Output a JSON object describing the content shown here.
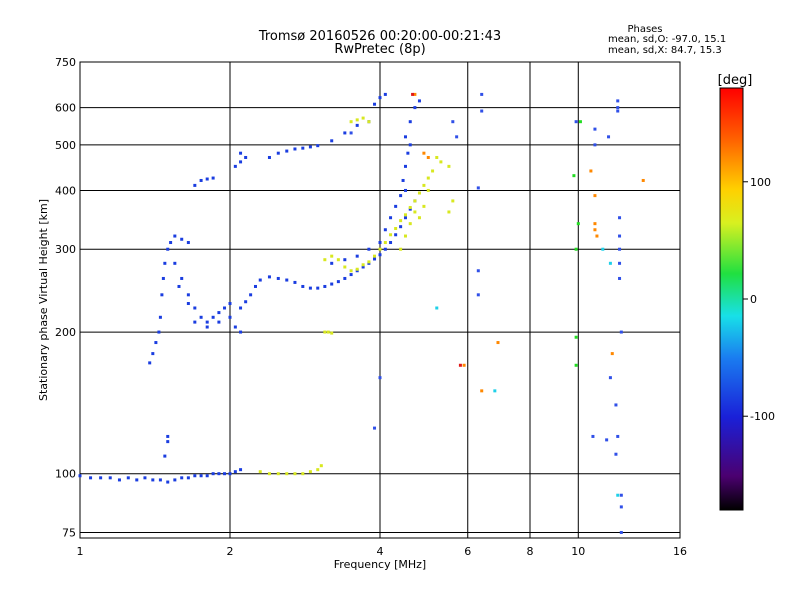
{
  "chart_data": {
    "type": "scatter",
    "title": "Tromsø 20160526 00:20:00-00:21:43",
    "subtitle": "RwPretec (8p)",
    "stats": {
      "heading": "Phases",
      "line1": "mean, sd,O: -97.0, 15.1",
      "line2": "mean, sd,X:  84.7, 15.3"
    },
    "xlabel": "Frequency [MHz]",
    "ylabel": "Stationary phase Virtual Height [km]",
    "xscale": "log",
    "yscale": "log",
    "xlim": [
      1,
      16
    ],
    "ylim": [
      73,
      750
    ],
    "xticks": [
      1,
      2,
      4,
      6,
      8,
      10,
      16
    ],
    "yticks": [
      75,
      100,
      200,
      300,
      400,
      500,
      600,
      750
    ],
    "grid": true,
    "colorbar": {
      "label": "[deg]",
      "range": [
        -180,
        180
      ],
      "ticks": [
        100,
        0,
        -100
      ],
      "colormap": "rainbow (black-purple-blue-cyan-green-yellow-red)"
    },
    "series": [
      {
        "color": "#1a3de0",
        "points": [
          [
            1.0,
            99
          ],
          [
            1.05,
            98
          ],
          [
            1.1,
            98
          ],
          [
            1.15,
            98
          ],
          [
            1.2,
            97
          ],
          [
            1.25,
            98
          ],
          [
            1.3,
            97
          ],
          [
            1.35,
            98
          ],
          [
            1.4,
            97
          ],
          [
            1.45,
            97
          ],
          [
            1.5,
            96
          ],
          [
            1.55,
            97
          ],
          [
            1.6,
            98
          ],
          [
            1.65,
            98
          ],
          [
            1.7,
            99
          ],
          [
            1.75,
            99
          ],
          [
            1.8,
            99
          ],
          [
            1.85,
            100
          ],
          [
            1.9,
            100
          ],
          [
            1.95,
            100
          ],
          [
            2.0,
            100
          ],
          [
            2.05,
            101
          ],
          [
            2.1,
            102
          ]
        ]
      },
      {
        "color": "#d8e820",
        "points": [
          [
            2.3,
            101
          ],
          [
            2.4,
            100
          ],
          [
            2.5,
            100
          ],
          [
            2.6,
            100
          ],
          [
            2.7,
            100
          ],
          [
            2.8,
            100
          ],
          [
            2.9,
            101
          ],
          [
            3.0,
            102
          ],
          [
            3.05,
            104
          ]
        ]
      },
      {
        "color": "#1a3de0",
        "points": [
          [
            1.5,
            120
          ],
          [
            1.5,
            117
          ],
          [
            1.48,
            109
          ],
          [
            1.38,
            172
          ],
          [
            1.4,
            180
          ],
          [
            1.42,
            190
          ],
          [
            1.44,
            200
          ],
          [
            1.45,
            215
          ],
          [
            1.46,
            240
          ],
          [
            1.47,
            260
          ],
          [
            1.48,
            280
          ],
          [
            1.5,
            300
          ],
          [
            1.52,
            310
          ],
          [
            1.55,
            320
          ],
          [
            1.6,
            315
          ],
          [
            1.65,
            310
          ],
          [
            1.55,
            280
          ],
          [
            1.6,
            260
          ],
          [
            1.65,
            240
          ],
          [
            1.7,
            225
          ],
          [
            1.75,
            215
          ],
          [
            1.8,
            210
          ],
          [
            1.85,
            215
          ],
          [
            1.9,
            220
          ],
          [
            1.95,
            225
          ],
          [
            2.0,
            230
          ],
          [
            1.58,
            250
          ],
          [
            1.65,
            230
          ],
          [
            1.7,
            210
          ],
          [
            1.8,
            205
          ],
          [
            1.9,
            210
          ],
          [
            2.0,
            215
          ],
          [
            2.05,
            205
          ],
          [
            2.1,
            200
          ]
        ]
      },
      {
        "color": "#1a3de0",
        "points": [
          [
            2.1,
            225
          ],
          [
            2.15,
            232
          ],
          [
            2.2,
            240
          ],
          [
            2.25,
            250
          ],
          [
            2.3,
            258
          ],
          [
            2.4,
            262
          ],
          [
            2.5,
            260
          ],
          [
            2.6,
            258
          ],
          [
            2.7,
            255
          ],
          [
            2.8,
            250
          ],
          [
            2.9,
            248
          ],
          [
            3.0,
            248
          ],
          [
            3.1,
            250
          ],
          [
            3.2,
            253
          ],
          [
            3.3,
            256
          ],
          [
            3.4,
            260
          ],
          [
            3.5,
            265
          ],
          [
            3.6,
            270
          ],
          [
            3.7,
            275
          ],
          [
            3.8,
            280
          ],
          [
            3.9,
            286
          ],
          [
            4.0,
            292
          ],
          [
            4.1,
            300
          ],
          [
            4.2,
            310
          ],
          [
            4.3,
            322
          ],
          [
            4.4,
            335
          ],
          [
            4.5,
            350
          ],
          [
            4.6,
            365
          ],
          [
            4.7,
            380
          ]
        ]
      },
      {
        "color": "#1a3de0",
        "points": [
          [
            3.2,
            280
          ],
          [
            3.4,
            285
          ],
          [
            3.6,
            290
          ],
          [
            3.8,
            300
          ],
          [
            4.0,
            310
          ],
          [
            4.1,
            330
          ],
          [
            4.2,
            350
          ],
          [
            4.3,
            370
          ],
          [
            4.4,
            390
          ],
          [
            4.5,
            400
          ],
          [
            4.45,
            420
          ],
          [
            4.5,
            450
          ],
          [
            4.55,
            480
          ],
          [
            4.6,
            500
          ],
          [
            4.5,
            520
          ],
          [
            4.6,
            560
          ],
          [
            4.7,
            600
          ],
          [
            4.8,
            620
          ],
          [
            3.9,
            610
          ],
          [
            4.0,
            630
          ],
          [
            4.1,
            640
          ]
        ]
      },
      {
        "color": "#1a3de0",
        "points": [
          [
            1.7,
            410
          ],
          [
            1.75,
            420
          ],
          [
            1.8,
            423
          ],
          [
            1.85,
            425
          ],
          [
            2.05,
            450
          ],
          [
            2.1,
            460
          ],
          [
            2.1,
            480
          ],
          [
            2.15,
            470
          ],
          [
            2.4,
            470
          ],
          [
            2.5,
            480
          ],
          [
            2.6,
            485
          ],
          [
            2.7,
            490
          ],
          [
            2.8,
            492
          ],
          [
            2.9,
            495
          ],
          [
            3.0,
            498
          ],
          [
            3.2,
            510
          ],
          [
            3.4,
            530
          ],
          [
            3.6,
            550
          ],
          [
            3.8,
            560
          ]
        ]
      },
      {
        "color": "#d8e820",
        "points": [
          [
            3.1,
            285
          ],
          [
            3.2,
            290
          ],
          [
            3.3,
            285
          ],
          [
            3.4,
            275
          ],
          [
            3.5,
            270
          ],
          [
            3.6,
            272
          ],
          [
            3.7,
            278
          ],
          [
            3.8,
            282
          ],
          [
            3.9,
            290
          ],
          [
            4.0,
            300
          ],
          [
            4.1,
            310
          ],
          [
            4.2,
            322
          ],
          [
            4.3,
            332
          ],
          [
            4.4,
            345
          ],
          [
            4.5,
            355
          ],
          [
            4.6,
            368
          ],
          [
            4.7,
            380
          ],
          [
            4.8,
            395
          ],
          [
            4.9,
            410
          ],
          [
            5.0,
            425
          ],
          [
            4.4,
            300
          ],
          [
            4.5,
            320
          ],
          [
            4.6,
            340
          ],
          [
            4.7,
            360
          ],
          [
            4.8,
            350
          ],
          [
            4.9,
            370
          ],
          [
            5.0,
            400
          ],
          [
            5.1,
            440
          ],
          [
            5.2,
            470
          ],
          [
            5.3,
            460
          ],
          [
            5.5,
            450
          ],
          [
            5.5,
            360
          ],
          [
            5.6,
            380
          ],
          [
            3.5,
            560
          ],
          [
            3.6,
            565
          ],
          [
            3.7,
            570
          ],
          [
            3.8,
            560
          ],
          [
            3.1,
            200
          ],
          [
            3.15,
            200
          ],
          [
            3.2,
            199
          ]
        ]
      },
      {
        "color": "#3050e8",
        "points": [
          [
            5.6,
            560
          ],
          [
            5.7,
            520
          ],
          [
            6.3,
            240
          ],
          [
            6.3,
            270
          ],
          [
            6.3,
            405
          ],
          [
            6.4,
            590
          ],
          [
            6.4,
            640
          ],
          [
            9.9,
            560
          ],
          [
            10.8,
            540
          ],
          [
            10.8,
            500
          ],
          [
            11.5,
            520
          ],
          [
            12.0,
            620
          ],
          [
            12.0,
            600
          ],
          [
            12.0,
            590
          ],
          [
            12.1,
            350
          ],
          [
            12.1,
            320
          ],
          [
            12.1,
            300
          ],
          [
            12.1,
            280
          ],
          [
            12.1,
            260
          ],
          [
            12.2,
            200
          ],
          [
            11.6,
            160
          ],
          [
            11.9,
            140
          ],
          [
            12.0,
            120
          ],
          [
            11.9,
            110
          ],
          [
            12.2,
            90
          ],
          [
            12.2,
            85
          ],
          [
            12.2,
            75
          ],
          [
            10.7,
            120
          ],
          [
            11.4,
            118
          ],
          [
            4.0,
            160
          ],
          [
            3.9,
            125
          ],
          [
            3.5,
            530
          ]
        ]
      },
      {
        "color": "#1fd0e8",
        "points": [
          [
            5.2,
            225
          ],
          [
            11.6,
            280
          ],
          [
            12.0,
            90
          ],
          [
            11.2,
            300
          ],
          [
            6.8,
            150
          ]
        ]
      },
      {
        "color": "#22dd22",
        "points": [
          [
            9.8,
            430
          ],
          [
            9.9,
            300
          ],
          [
            9.9,
            195
          ],
          [
            9.9,
            170
          ],
          [
            10.0,
            340
          ],
          [
            10.1,
            560
          ]
        ]
      },
      {
        "color": "#ff8800",
        "points": [
          [
            4.9,
            480
          ],
          [
            5.0,
            470
          ],
          [
            4.7,
            640
          ],
          [
            5.9,
            170
          ],
          [
            6.9,
            190
          ],
          [
            10.6,
            440
          ],
          [
            10.8,
            390
          ],
          [
            10.8,
            340
          ],
          [
            10.8,
            330
          ],
          [
            10.9,
            320
          ],
          [
            11.7,
            180
          ],
          [
            13.5,
            420
          ],
          [
            6.4,
            150
          ]
        ]
      },
      {
        "color": "#e01818",
        "points": [
          [
            4.65,
            640
          ],
          [
            5.8,
            170
          ]
        ]
      }
    ]
  }
}
